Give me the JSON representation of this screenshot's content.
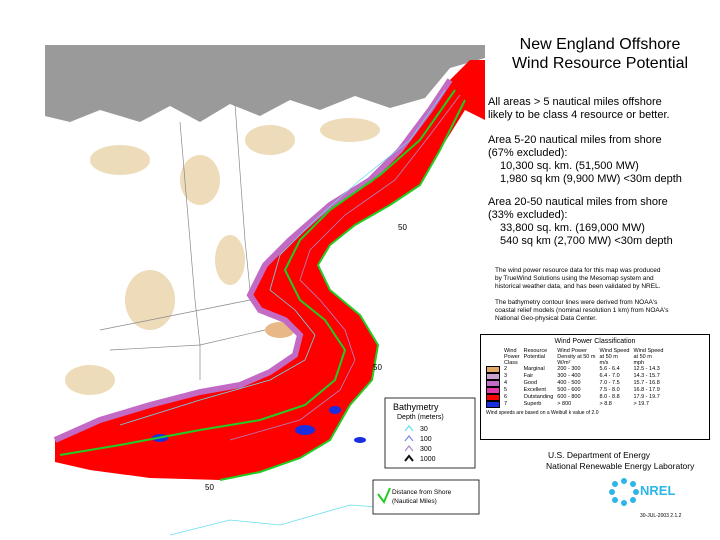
{
  "header": {
    "title": [
      "New England Offshore",
      "Wind Resource Potential"
    ]
  },
  "summary": [
    {
      "lines": [
        "All areas > 5 nautical miles offshore",
        "likely to be class 4 resource or better."
      ]
    },
    {
      "lines": [
        "Area 5-20 nautical miles from shore",
        "(67% excluded):"
      ],
      "details": [
        "10,300 sq. km. (51,500 MW)",
        "1,980 sq km (9,900 MW) <30m depth"
      ]
    },
    {
      "lines": [
        "Area 20-50 nautical miles from shore",
        "(33% excluded):"
      ],
      "details": [
        "33,800 sq. km. (169,000 MW)",
        "540 sq km (2,700 MW) <30m depth"
      ]
    }
  ],
  "notes": [
    [
      "The wind power resource data for this map was produced",
      "by TrueWind Solutions using the Mesomap system and",
      "historical weather data, and has been validated by NREL."
    ],
    [
      "The bathymetry contour lines were derived from NOAA's",
      "coastal relief models (nominal resolution 1 km) from NOAA's",
      "National Geo-physical Data Center."
    ]
  ],
  "classification": {
    "title": "Wind Power Classification",
    "columns": [
      [
        "Wind",
        "Power",
        "Class"
      ],
      [
        "Resource",
        "Potential"
      ],
      [
        "Wind Power",
        "Density at 50 m",
        "W/m²"
      ],
      [
        "Wind Speed",
        "at 50 m",
        "m/s"
      ],
      [
        "Wind Speed",
        "at 50 m",
        "mph"
      ]
    ],
    "rows": [
      [
        "2",
        "Marginal",
        "200 - 300",
        "5.6 - 6.4",
        "12.5 - 14.3"
      ],
      [
        "3",
        "Fair",
        "300 - 400",
        "6.4 - 7.0",
        "14.3 - 15.7"
      ],
      [
        "4",
        "Good",
        "400 - 500",
        "7.0 - 7.5",
        "15.7 - 16.8"
      ],
      [
        "5",
        "Excellent",
        "500 - 600",
        "7.5 - 8.0",
        "16.8 - 17.9"
      ],
      [
        "6",
        "Outstanding",
        "600 - 800",
        "8.0 - 8.8",
        "17.9 - 19.7"
      ],
      [
        "7",
        "Superb",
        "> 800",
        "> 8.8",
        "> 19.7"
      ]
    ],
    "colors": [
      "#e2a868",
      "#c9a2cf",
      "#c26ac4",
      "#e03aa8",
      "#ff0000",
      "#1a2ee0"
    ],
    "footnote": "Wind speeds are based on a Weibull k value of 2.0"
  },
  "bathymetry": {
    "title": "Bathymetry",
    "subtitle": "Depth (meters)",
    "levels": [
      "30",
      "100",
      "300",
      "1000"
    ],
    "colors": [
      "#66ddee",
      "#7788ee",
      "#aa88cc",
      "#111111"
    ]
  },
  "distance": {
    "lines": [
      "Distance from Shore",
      "(Nautical Miles)"
    ],
    "color": "#22cc22"
  },
  "map": {
    "labels": [
      "50",
      "50",
      "50"
    ]
  },
  "credits": {
    "agency": "U.S. Department of Energy",
    "lab": "National Renewable Energy Laboratory",
    "logo": "NREL",
    "date": "30-JUL-2003 2.1.2"
  }
}
